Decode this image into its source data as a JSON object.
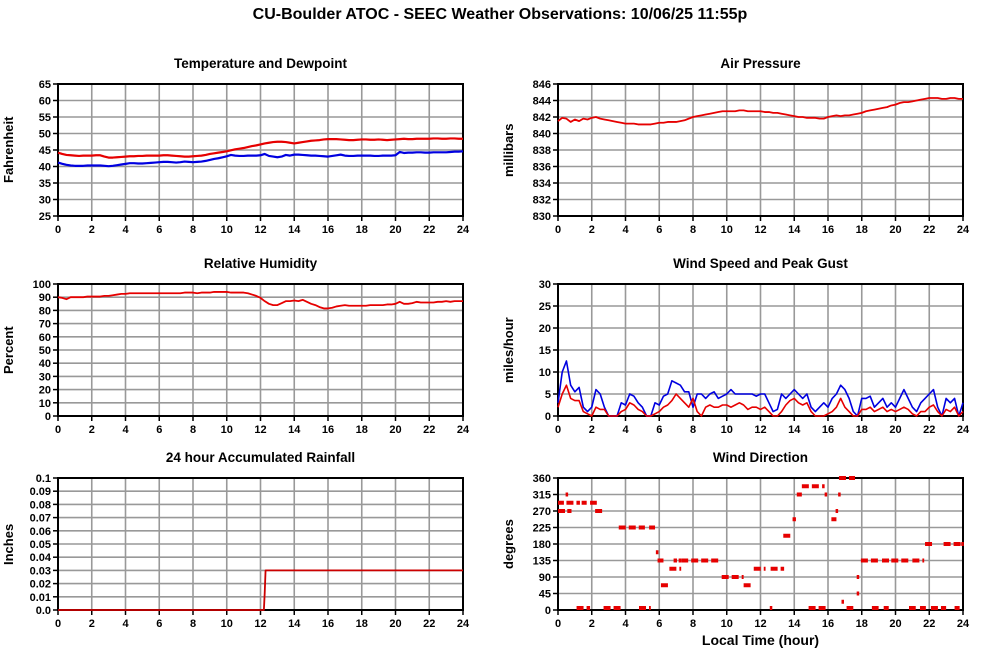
{
  "page": {
    "title": "CU-Boulder ATOC - SEEC Weather Observations: 10/06/25 11:55p"
  },
  "colors": {
    "red": "#e60000",
    "blue": "#0000e0",
    "rain_red": "#cc0000",
    "grid": "#999999",
    "axis": "#000000"
  },
  "chart_data": [
    {
      "id": "temperature-dewpoint",
      "type": "line",
      "title": "Temperature and Dewpoint",
      "ylabel": "Fahrenheit",
      "xlim": [
        0,
        24
      ],
      "ylim": [
        25,
        65
      ],
      "xticks": [
        0,
        2,
        4,
        6,
        8,
        10,
        12,
        14,
        16,
        18,
        20,
        22,
        24
      ],
      "yticks": [
        25,
        30,
        35,
        40,
        45,
        50,
        55,
        60,
        65
      ],
      "series": [
        {
          "name": "dewpoint",
          "color": "#0000e0",
          "width": 2.2,
          "x_start": 0,
          "x_step": 0.25,
          "y": [
            41.2,
            40.8,
            40.5,
            40.3,
            40.2,
            40.2,
            40.2,
            40.3,
            40.3,
            40.3,
            40.3,
            40.2,
            40.1,
            40.2,
            40.4,
            40.6,
            40.8,
            41.0,
            41.0,
            40.9,
            40.9,
            41.0,
            41.1,
            41.2,
            41.3,
            41.4,
            41.4,
            41.3,
            41.2,
            41.3,
            41.5,
            41.4,
            41.3,
            41.4,
            41.5,
            41.7,
            42.0,
            42.3,
            42.5,
            42.8,
            43.1,
            43.5,
            43.3,
            43.2,
            43.2,
            43.3,
            43.3,
            43.3,
            43.4,
            43.8,
            43.2,
            43.0,
            42.8,
            43.0,
            43.5,
            43.3,
            43.6,
            43.6,
            43.5,
            43.4,
            43.3,
            43.3,
            43.2,
            43.1,
            43.0,
            43.2,
            43.4,
            43.6,
            43.3,
            43.2,
            43.2,
            43.3,
            43.3,
            43.3,
            43.3,
            43.2,
            43.2,
            43.3,
            43.3,
            43.3,
            43.4,
            44.4,
            44.1,
            44.2,
            44.2,
            44.3,
            44.3,
            44.2,
            44.2,
            44.3,
            44.3,
            44.3,
            44.3,
            44.4,
            44.5,
            44.5,
            44.6
          ]
        },
        {
          "name": "temperature",
          "color": "#e60000",
          "width": 2.2,
          "x_start": 0,
          "x_step": 0.25,
          "y": [
            44.2,
            43.8,
            43.5,
            43.4,
            43.3,
            43.2,
            43.3,
            43.3,
            43.3,
            43.4,
            43.4,
            43.0,
            42.7,
            42.7,
            42.8,
            42.9,
            43.0,
            43.1,
            43.1,
            43.2,
            43.2,
            43.3,
            43.3,
            43.3,
            43.3,
            43.4,
            43.4,
            43.3,
            43.2,
            43.1,
            43.0,
            43.0,
            43.1,
            43.2,
            43.3,
            43.5,
            43.8,
            44.0,
            44.2,
            44.4,
            44.6,
            44.9,
            45.2,
            45.4,
            45.6,
            45.9,
            46.2,
            46.4,
            46.7,
            47.0,
            47.2,
            47.4,
            47.5,
            47.5,
            47.4,
            47.2,
            47.0,
            47.2,
            47.4,
            47.6,
            47.8,
            47.9,
            48.0,
            48.2,
            48.3,
            48.3,
            48.3,
            48.2,
            48.1,
            48.0,
            48.0,
            48.1,
            48.2,
            48.2,
            48.1,
            48.1,
            48.2,
            48.1,
            48.0,
            48.1,
            48.2,
            48.3,
            48.4,
            48.3,
            48.3,
            48.4,
            48.4,
            48.4,
            48.4,
            48.5,
            48.5,
            48.4,
            48.4,
            48.5,
            48.5,
            48.4,
            48.4
          ]
        }
      ]
    },
    {
      "id": "air-pressure",
      "type": "line",
      "title": "Air Pressure",
      "ylabel": "millibars",
      "xlim": [
        0,
        24
      ],
      "ylim": [
        830,
        846
      ],
      "xticks": [
        0,
        2,
        4,
        6,
        8,
        10,
        12,
        14,
        16,
        18,
        20,
        22,
        24
      ],
      "yticks": [
        830,
        832,
        834,
        836,
        838,
        840,
        842,
        844,
        846
      ],
      "series": [
        {
          "name": "pressure",
          "color": "#e60000",
          "width": 1.8,
          "x_start": 0,
          "x_step": 0.25,
          "y": [
            841.5,
            841.9,
            841.8,
            841.4,
            841.7,
            841.5,
            841.8,
            841.7,
            841.9,
            842.0,
            841.8,
            841.7,
            841.6,
            841.5,
            841.4,
            841.3,
            841.2,
            841.2,
            841.2,
            841.1,
            841.1,
            841.1,
            841.1,
            841.2,
            841.3,
            841.3,
            841.4,
            841.4,
            841.4,
            841.5,
            841.6,
            841.8,
            842.0,
            842.1,
            842.2,
            842.3,
            842.4,
            842.5,
            842.6,
            842.7,
            842.7,
            842.7,
            842.7,
            842.8,
            842.8,
            842.7,
            842.7,
            842.7,
            842.7,
            842.6,
            842.6,
            842.5,
            842.5,
            842.4,
            842.3,
            842.2,
            842.1,
            842.0,
            842.0,
            841.9,
            841.9,
            841.9,
            841.8,
            841.8,
            842.0,
            842.1,
            842.2,
            842.1,
            842.2,
            842.2,
            842.3,
            842.4,
            842.5,
            842.7,
            842.8,
            842.9,
            843.0,
            843.1,
            843.2,
            843.4,
            843.5,
            843.7,
            843.8,
            843.8,
            843.9,
            844.0,
            844.1,
            844.2,
            844.3,
            844.3,
            844.3,
            844.2,
            844.2,
            844.3,
            844.3,
            844.2,
            844.2
          ]
        }
      ]
    },
    {
      "id": "relative-humidity",
      "type": "line",
      "title": "Relative Humidity",
      "ylabel": "Percent",
      "xlim": [
        0,
        24
      ],
      "ylim": [
        0,
        100
      ],
      "xticks": [
        0,
        2,
        4,
        6,
        8,
        10,
        12,
        14,
        16,
        18,
        20,
        22,
        24
      ],
      "yticks": [
        0,
        10,
        20,
        30,
        40,
        50,
        60,
        70,
        80,
        90,
        100
      ],
      "series": [
        {
          "name": "humidity",
          "color": "#e60000",
          "width": 1.8,
          "x_start": 0,
          "x_step": 0.25,
          "y": [
            90,
            89.5,
            88.5,
            90,
            90,
            90,
            90,
            90.5,
            90.5,
            90.5,
            90.5,
            91,
            91,
            91.5,
            92,
            92.5,
            92.5,
            93,
            93,
            93,
            93,
            93,
            93,
            93,
            93,
            93,
            93,
            93,
            93,
            93,
            93.5,
            93.5,
            93.5,
            93,
            93.5,
            93.5,
            93.5,
            94,
            94,
            94,
            94,
            93.5,
            93.5,
            93.5,
            93.5,
            93,
            92,
            91,
            89.5,
            87,
            85,
            84,
            84,
            85.5,
            87,
            87,
            87.5,
            87,
            88,
            86.5,
            85,
            84,
            82.5,
            81.5,
            81.5,
            82,
            83,
            83.5,
            84,
            83.5,
            83.5,
            83.5,
            83.5,
            83.5,
            84,
            84,
            84,
            84,
            84.5,
            84.5,
            85,
            86.5,
            85,
            85,
            85.5,
            86.5,
            86,
            86,
            86,
            86,
            86.5,
            86.5,
            87,
            86.5,
            87,
            87,
            87
          ]
        }
      ]
    },
    {
      "id": "wind-speed-gust",
      "type": "line",
      "title": "Wind Speed and Peak Gust",
      "ylabel": "miles/hour",
      "xlim": [
        0,
        24
      ],
      "ylim": [
        0,
        30
      ],
      "xticks": [
        0,
        2,
        4,
        6,
        8,
        10,
        12,
        14,
        16,
        18,
        20,
        22,
        24
      ],
      "yticks": [
        0,
        5,
        10,
        15,
        20,
        25,
        30
      ],
      "series": [
        {
          "name": "peak-gust",
          "color": "#0000e0",
          "width": 1.6,
          "x_start": 0,
          "x_step": 0.25,
          "y": [
            3,
            10,
            12.5,
            7,
            5.5,
            6.5,
            2,
            1,
            2,
            6,
            5,
            2,
            0,
            0,
            0,
            3,
            2.5,
            5,
            4.5,
            3,
            2,
            0,
            0,
            3,
            2.5,
            4.5,
            5,
            8,
            7.5,
            7,
            5.5,
            5.5,
            2,
            5,
            5,
            4,
            5,
            5.5,
            4,
            4.5,
            5,
            6,
            5,
            5,
            5,
            5,
            5,
            4.5,
            5,
            5,
            3,
            1,
            1.5,
            5,
            4,
            5,
            6,
            5,
            4,
            5,
            2,
            1,
            2,
            3,
            2,
            4,
            5,
            7,
            6,
            4,
            1,
            0,
            4,
            4,
            4.5,
            2,
            3,
            4,
            2,
            3,
            2,
            4,
            6,
            4,
            2,
            1,
            3,
            4,
            5,
            6,
            2,
            0,
            4,
            3,
            4,
            0,
            3
          ]
        },
        {
          "name": "wind-speed",
          "color": "#e60000",
          "width": 1.6,
          "x_start": 0,
          "x_step": 0.25,
          "y": [
            2,
            5,
            7,
            4,
            3.5,
            3.5,
            1,
            0.5,
            0,
            2,
            1.5,
            1.5,
            0,
            0,
            0,
            1,
            1.5,
            3,
            2.5,
            1.5,
            1,
            0,
            0,
            0.5,
            1,
            2,
            2.5,
            3.5,
            5,
            4,
            3,
            2,
            4,
            1,
            0,
            2,
            2.5,
            2,
            2,
            2.5,
            2.5,
            2,
            2.5,
            3,
            2.5,
            1.5,
            2,
            2,
            1.5,
            2,
            1,
            0,
            0,
            1,
            2.5,
            3.5,
            4,
            3,
            2.5,
            3,
            1,
            0,
            0,
            0,
            0.5,
            1,
            2,
            4,
            2,
            1,
            0,
            0,
            1.5,
            1.5,
            2,
            1,
            1.5,
            2,
            1,
            1.5,
            1,
            1.5,
            2,
            1.5,
            0.5,
            0,
            1,
            1,
            2,
            2.5,
            1,
            0,
            1.5,
            1,
            2,
            0,
            1
          ]
        }
      ]
    },
    {
      "id": "accumulated-rainfall",
      "type": "line",
      "title": "24 hour Accumulated Rainfall",
      "ylabel": "Inches",
      "xlim": [
        0,
        24
      ],
      "ylim": [
        0,
        0.1
      ],
      "xticks": [
        0,
        2,
        4,
        6,
        8,
        10,
        12,
        14,
        16,
        18,
        20,
        22,
        24
      ],
      "yticks": [
        0,
        0.01,
        0.02,
        0.03,
        0.04,
        0.05,
        0.06,
        0.07,
        0.08,
        0.09,
        0.1
      ],
      "ytick_labels": [
        "0.0",
        "0.01",
        "0.02",
        "0.03",
        "0.04",
        "0.05",
        "0.06",
        "0.07",
        "0.08",
        "0.09",
        "0.1"
      ],
      "series": [
        {
          "name": "rainfall",
          "color": "#cc0000",
          "width": 1.8,
          "x": [
            0,
            12.2,
            12.25,
            12.3,
            24
          ],
          "y": [
            0,
            0,
            0.013,
            0.03,
            0.03
          ]
        }
      ]
    },
    {
      "id": "wind-direction",
      "type": "scatter-segments",
      "title": "Wind Direction",
      "ylabel": "degrees",
      "xlabel": "Local Time (hour)",
      "marker_color": "#e60000",
      "xlim": [
        0,
        24
      ],
      "ylim": [
        0,
        360
      ],
      "xticks": [
        0,
        2,
        4,
        6,
        8,
        10,
        12,
        14,
        16,
        18,
        20,
        22,
        24
      ],
      "yticks": [
        0,
        45,
        90,
        135,
        180,
        225,
        270,
        315,
        360
      ],
      "segments": [
        [
          0,
          0.35,
          292.5
        ],
        [
          0,
          0.5,
          270
        ],
        [
          0.45,
          0.6,
          315
        ],
        [
          0.55,
          0.8,
          270
        ],
        [
          0.5,
          1.3,
          292.5
        ],
        [
          1.4,
          1.7,
          292.5
        ],
        [
          1.9,
          2.3,
          292.5
        ],
        [
          1.1,
          1.9,
          0
        ],
        [
          2.2,
          2.75,
          270
        ],
        [
          2.7,
          3.8,
          0
        ],
        [
          3.6,
          5.15,
          225
        ],
        [
          4.8,
          5.5,
          0
        ],
        [
          5.4,
          5.75,
          225
        ],
        [
          5.8,
          5.95,
          157.5
        ],
        [
          5.9,
          6.25,
          135
        ],
        [
          6.1,
          6.6,
          67.5
        ],
        [
          6.6,
          7.3,
          112.5
        ],
        [
          6.85,
          7.05,
          135
        ],
        [
          7.15,
          7.25,
          135
        ],
        [
          7.3,
          9.65,
          135
        ],
        [
          9.7,
          11.0,
          90
        ],
        [
          11.0,
          11.5,
          67.5
        ],
        [
          11.6,
          12.3,
          112.5
        ],
        [
          12.55,
          12.7,
          0
        ],
        [
          12.6,
          13.4,
          112.5
        ],
        [
          13.35,
          13.9,
          202.5
        ],
        [
          13.9,
          14.1,
          247.5
        ],
        [
          14.15,
          14.45,
          315
        ],
        [
          14.45,
          15.5,
          337.5
        ],
        [
          15.65,
          15.8,
          337.5
        ],
        [
          14.85,
          15.9,
          0
        ],
        [
          15.8,
          15.95,
          315
        ],
        [
          16.2,
          16.5,
          247.5
        ],
        [
          16.45,
          16.6,
          270
        ],
        [
          16.6,
          16.75,
          315
        ],
        [
          16.65,
          17.6,
          360
        ],
        [
          16.8,
          16.9,
          22.5
        ],
        [
          17.1,
          17.5,
          0
        ],
        [
          17.7,
          17.85,
          90
        ],
        [
          17.7,
          17.78,
          45
        ],
        [
          17.95,
          19.1,
          135
        ],
        [
          19.2,
          19.65,
          135
        ],
        [
          19.75,
          20.9,
          135
        ],
        [
          21.0,
          21.7,
          135
        ],
        [
          18.6,
          19.0,
          0
        ],
        [
          19.3,
          19.6,
          0
        ],
        [
          20.8,
          21.2,
          0
        ],
        [
          21.45,
          21.8,
          0
        ],
        [
          21.75,
          22.3,
          180
        ],
        [
          22.85,
          23.9,
          180
        ],
        [
          22.1,
          23.0,
          0
        ],
        [
          23.5,
          23.8,
          0
        ],
        [
          23.9,
          24,
          180
        ]
      ]
    }
  ]
}
